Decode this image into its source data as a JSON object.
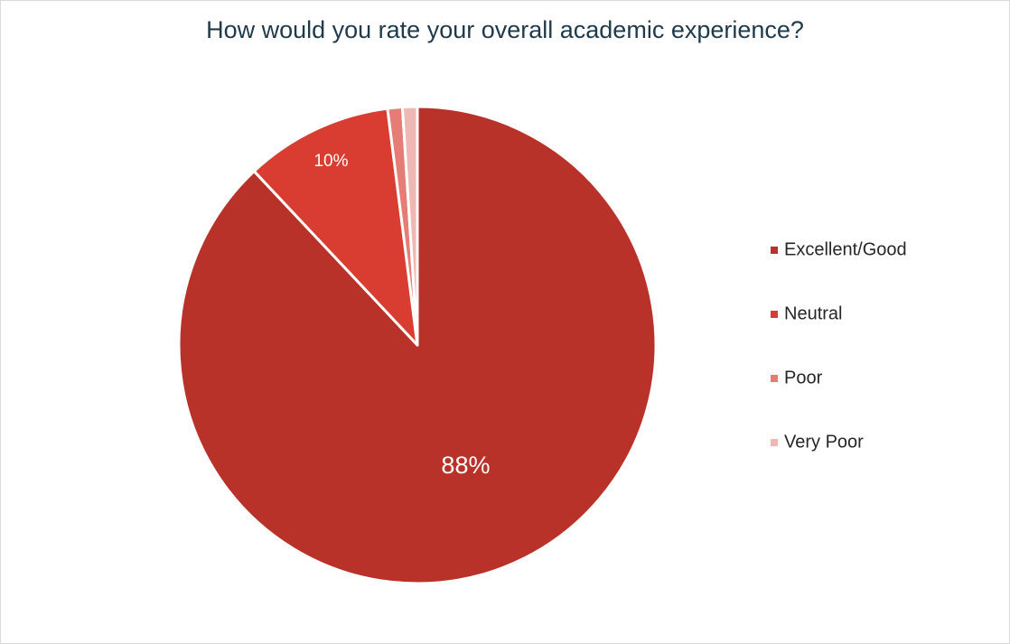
{
  "chart_data": {
    "type": "pie",
    "title": "How would you rate your overall academic experience?",
    "categories": [
      "Excellent/Good",
      "Neutral",
      "Poor",
      "Very Poor"
    ],
    "values": [
      88,
      10,
      1,
      1
    ],
    "value_labels": [
      "88%",
      "10%",
      null,
      null
    ],
    "colors": [
      "#b83229",
      "#d93d31",
      "#e57c75",
      "#f0b8b4"
    ],
    "legend": "right"
  }
}
